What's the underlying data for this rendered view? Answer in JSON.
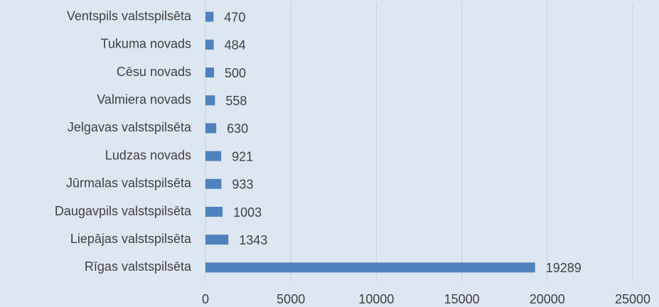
{
  "chart_data": {
    "type": "bar",
    "orientation": "horizontal",
    "categories": [
      "Ventspils valstspilsēta",
      "Tukuma novads",
      "Cēsu novads",
      "Valmiera novads",
      "Jelgavas valstspilsēta",
      "Ludzas novads",
      "Jūrmalas valstspilsēta",
      "Daugavpils valstspilsēta",
      "Liepājas valstspilsēta",
      "Rīgas valstspilsēta"
    ],
    "values": [
      470,
      484,
      500,
      558,
      630,
      921,
      933,
      1003,
      1343,
      19289
    ],
    "color": "#4f81bd",
    "xlim": [
      0,
      25000
    ],
    "xticks": [
      0,
      5000,
      10000,
      15000,
      20000,
      25000
    ],
    "grid": true
  }
}
